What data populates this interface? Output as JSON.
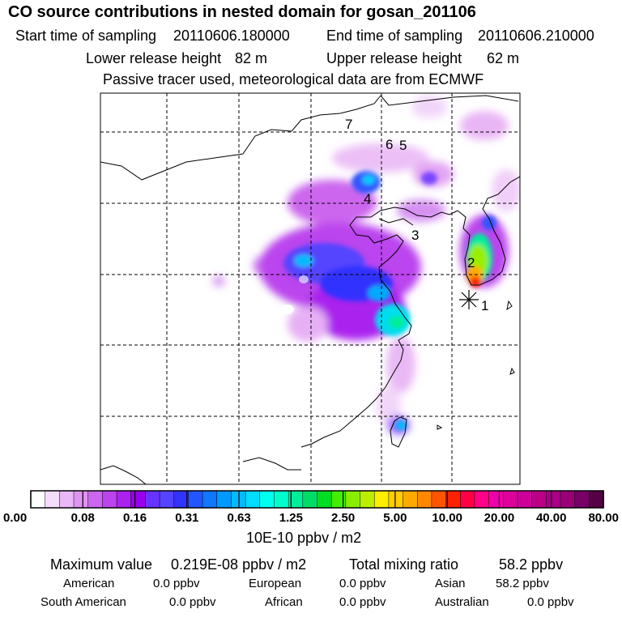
{
  "title": "CO  source contributions in nested domain for gosan_201106",
  "header": {
    "start_label": "Start time of sampling",
    "start_value": "20110606.180000",
    "end_label": "End time of sampling",
    "end_value": "20110606.210000",
    "lower_label": "Lower release height",
    "lower_value": "82 m",
    "upper_label": "Upper release height",
    "upper_value": "62 m",
    "note": "Passive tracer used, meteorological data are from ECMWF"
  },
  "map": {
    "receptor_labels": [
      "1",
      "2",
      "3",
      "4",
      "5",
      "6",
      "7"
    ],
    "colors": {
      "coast": "#000000",
      "grid": "#000000"
    }
  },
  "colorbar": {
    "tick_labels": [
      "0.00",
      "0.08",
      "0.16",
      "0.31",
      "0.63",
      "1.25",
      "2.50",
      "5.00",
      "10.00",
      "20.00",
      "40.00",
      "80.00"
    ],
    "unit": "10E-10 ppbv / m2",
    "colors": [
      "#ffffff",
      "#f4dcfa",
      "#eab8f6",
      "#e094f2",
      "#cc66ee",
      "#bb44ee",
      "#aa22ee",
      "#9900ee",
      "#6633ff",
      "#5544ff",
      "#3333ff",
      "#2255ff",
      "#1177ff",
      "#0099ff",
      "#00bbff",
      "#00ddff",
      "#00ffee",
      "#00ffcc",
      "#00ee99",
      "#00dd66",
      "#00dd22",
      "#44ee00",
      "#88ee00",
      "#bbee00",
      "#ffee00",
      "#ffcc00",
      "#ffaa00",
      "#ff8800",
      "#ff5500",
      "#ff2200",
      "#ff0044",
      "#ff0088",
      "#ee00aa",
      "#dd0099",
      "#cc0099",
      "#bb0088",
      "#aa0088",
      "#990077",
      "#770066",
      "#550044"
    ]
  },
  "stats": {
    "max_label": "Maximum value",
    "max_value": "0.219E-08 ppbv / m2",
    "total_label": "Total mixing ratio",
    "total_value": "58.2 ppbv",
    "regions": [
      {
        "name": "American",
        "value": "0.0 ppbv"
      },
      {
        "name": "European",
        "value": "0.0 ppbv"
      },
      {
        "name": "Asian",
        "value": "58.2 ppbv"
      },
      {
        "name": "South American",
        "value": "0.0 ppbv"
      },
      {
        "name": "African",
        "value": "0.0 ppbv"
      },
      {
        "name": "Australian",
        "value": "0.0 ppbv"
      }
    ]
  }
}
